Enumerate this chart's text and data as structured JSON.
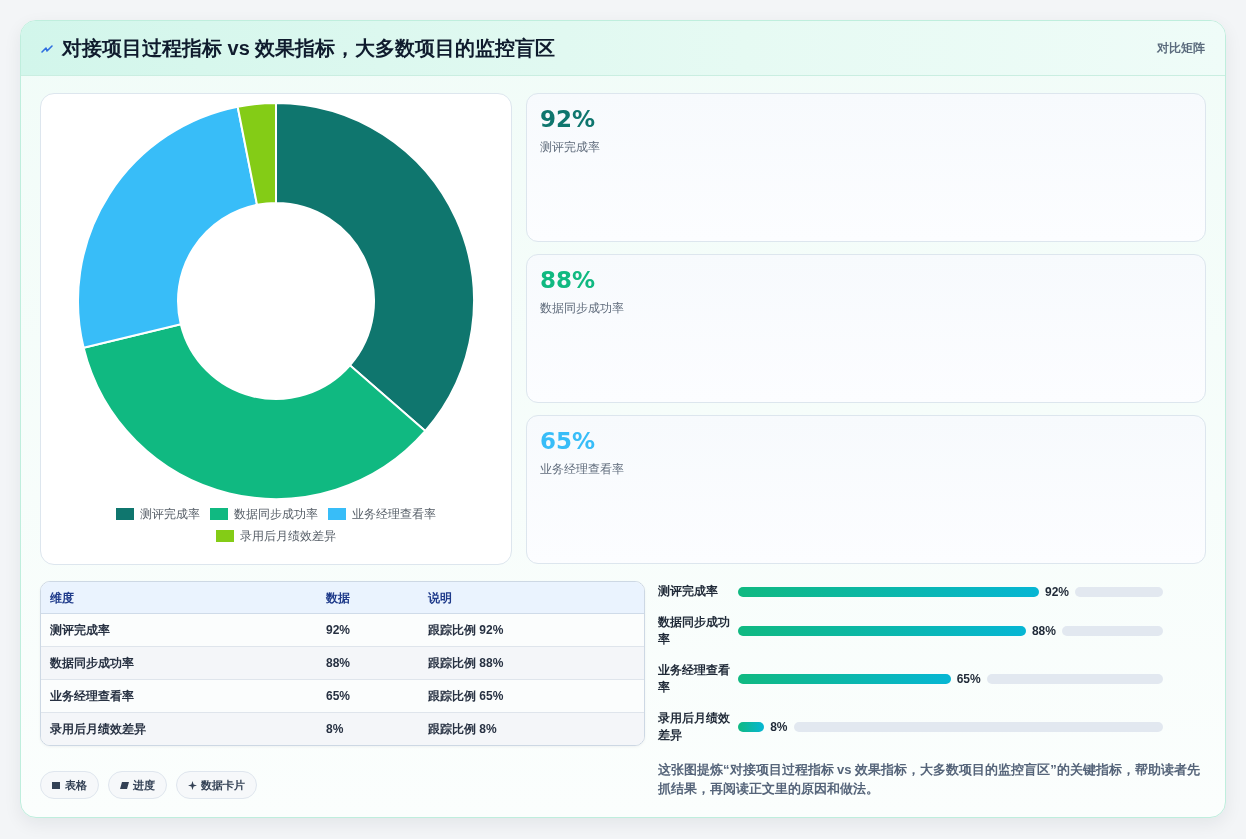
{
  "chart_data": [
    {
      "type": "other",
      "title": "对接项目过程指标 vs 效果指标，大多数项目的监控盲区",
      "subtitle": "对比矩阵"
    },
    {
      "type": "donut",
      "categories": [
        "测评完成率",
        "数据同步成功率",
        "业务经理查看率",
        "录用后月绩效差异"
      ],
      "values": [
        36.4,
        34.8,
        25.7,
        3.1
      ],
      "colors": [
        "#0f766e",
        "#10b981",
        "#38bdf8",
        "#84cc16"
      ],
      "legend": "bottom"
    },
    {
      "type": "other",
      "categories": [
        "测评完成率",
        "数据同步成功率",
        "业务经理查看率"
      ],
      "value_labels": [
        "92%",
        "88%",
        "65%"
      ]
    },
    {
      "type": "other",
      "categories": [
        "测评完成率",
        "数据同步成功率",
        "业务经理查看率",
        "录用后月绩效差异"
      ],
      "value_labels": [
        "92%",
        "88%",
        "65%",
        "8%"
      ],
      "annotations": [
        "维度",
        "数据",
        "说明",
        "跟踪比例 92%",
        "跟踪比例 88%",
        "跟踪比例 65%",
        "跟踪比例 8%"
      ]
    },
    {
      "type": "bar",
      "orientation": "horizontal",
      "categories": [
        "测评完成率",
        "数据同步成功率",
        "业务经理查看率",
        "录用后月绩效差异"
      ],
      "values": [
        92,
        88,
        65,
        8
      ],
      "value_labels": [
        "92%",
        "88%",
        "65%",
        "8%"
      ],
      "color": "#10b981",
      "annotations": [
        "这张图提炼“对接项目过程指标 vs 效果指标，大多数项目的监控盲区”的关键指标，帮助读者先抓结果，再阅读正文里的原因和做法。"
      ]
    },
    {
      "type": "other",
      "annotations": [
        "表格",
        "进度",
        "数据卡片"
      ]
    }
  ]
}
